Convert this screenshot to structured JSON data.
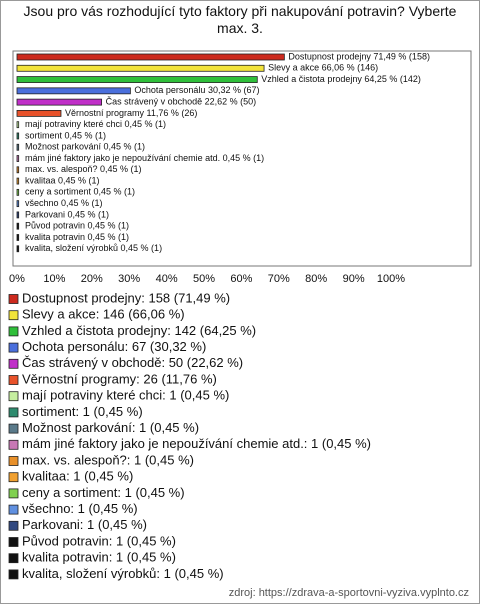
{
  "chart_data": {
    "type": "hbar",
    "title": "Jsou pro vás rozhodující tyto faktory při nakupování potravin? Vyberte max. 3.",
    "values": [
      71.49,
      66.06,
      64.25,
      30.32,
      22.62,
      11.76,
      0.45,
      0.45,
      0.45,
      0.45,
      0.45,
      0.45,
      0.45,
      0.45,
      0.45,
      0.45,
      0.45,
      0.45
    ],
    "value_labels": [
      "Dostupnost prodejny 71,49 % (158)",
      "Slevy a akce 66,06 % (146)",
      "Vzhled a čistota prodejny 64,25 % (142)",
      "Ochota personálu 30,32 % (67)",
      "Čas strávený v obchodě 22,62 % (50)",
      "Věrnostní programy 11,76 % (26)",
      "mají potraviny které chci 0,45 % (1)",
      "sortiment 0,45 % (1)",
      "Možnost parkování 0,45 % (1)",
      "mám jiné faktory jako je nepoužívání chemie atd. 0,45 % (1)",
      "max. vs. alespoň? 0,45 % (1)",
      "kvalitaa 0,45 % (1)",
      "ceny a sortiment 0,45 % (1)",
      "všechno 0,45 % (1)",
      "Parkovani 0,45 % (1)",
      "Původ potravin 0,45 % (1)",
      "kvalita potravin 0,45 % (1)",
      "kvalita, složení výrobků 0,45 % (1)"
    ],
    "legend_labels": [
      "Dostupnost prodejny: 158 (71,49 %)",
      "Slevy a akce: 146 (66,06 %)",
      "Vzhled a čistota prodejny: 142 (64,25 %)",
      "Ochota personálu: 67 (30,32 %)",
      "Čas strávený v obchodě: 50 (22,62 %)",
      "Věrnostní programy: 26 (11,76 %)",
      "mají potraviny které chci: 1 (0,45 %)",
      "sortiment: 1 (0,45 %)",
      "Možnost parkování: 1 (0,45 %)",
      "mám jiné faktory jako je nepoužívání chemie atd.: 1 (0,45 %)",
      "max. vs. alespoň?: 1 (0,45 %)",
      "kvalitaa: 1 (0,45 %)",
      "ceny a sortiment: 1 (0,45 %)",
      "všechno: 1 (0,45 %)",
      "Parkovani: 1 (0,45 %)",
      "Původ potravin: 1 (0,45 %)",
      "kvalita potravin: 1 (0,45 %)",
      "kvalita, složení výrobků: 1 (0,45 %)"
    ],
    "colors": [
      "#cc2a1e",
      "#f2e33a",
      "#2fbf3a",
      "#4a6fdc",
      "#c02fc8",
      "#e8522a",
      "#c6eea0",
      "#2e8b6e",
      "#5a7a8a",
      "#c878b4",
      "#e8902a",
      "#f0a030",
      "#80d050",
      "#6090e0",
      "#304880",
      "#111111",
      "#111111",
      "#111111"
    ],
    "xlim": [
      0,
      100
    ],
    "xticks": [
      {
        "value": 0,
        "label": "0%"
      },
      {
        "value": 10,
        "label": "10%"
      },
      {
        "value": 20,
        "label": "20%"
      },
      {
        "value": 30,
        "label": "30%"
      },
      {
        "value": 40,
        "label": "40%"
      },
      {
        "value": 50,
        "label": "50%"
      },
      {
        "value": 60,
        "label": "60%"
      },
      {
        "value": 70,
        "label": "70%"
      },
      {
        "value": 80,
        "label": "80%"
      },
      {
        "value": 90,
        "label": "90%"
      },
      {
        "value": 100,
        "label": "100%"
      }
    ],
    "source": "zdroj: https://zdrava-a-sportovni-vyziva.vyplnto.cz"
  }
}
